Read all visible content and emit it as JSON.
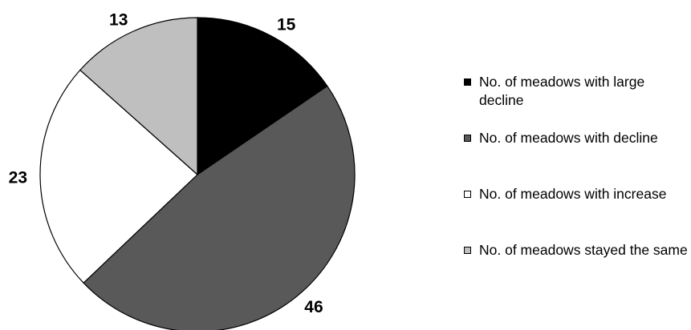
{
  "chart_data": {
    "type": "pie",
    "title": "",
    "categories": [
      "No. of meadows with large decline",
      "No. of meadows with decline",
      "No. of meadows with increase",
      "No. of meadows stayed the same"
    ],
    "values": [
      15,
      46,
      23,
      13
    ],
    "data_labels": [
      "15",
      "46",
      "23",
      "13"
    ],
    "colors": [
      "#000000",
      "#595959",
      "#ffffff",
      "#bfbfbf"
    ],
    "start_angle": "12 o'clock",
    "direction": "clockwise",
    "legend_position": "right"
  }
}
